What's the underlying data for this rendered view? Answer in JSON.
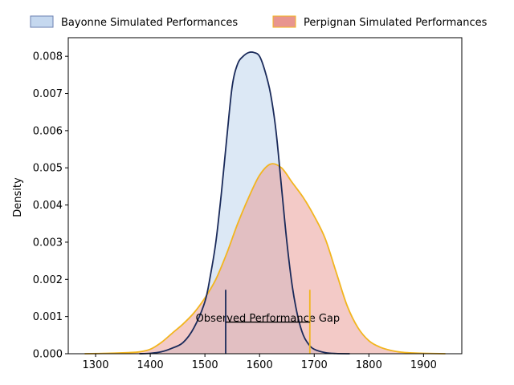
{
  "chart_data": {
    "type": "area",
    "title": "",
    "xlabel": "",
    "ylabel": "Density",
    "xlim": [
      1250,
      1970
    ],
    "ylim": [
      0,
      0.0085
    ],
    "xticks": [
      1300,
      1400,
      1500,
      1600,
      1700,
      1800,
      1900
    ],
    "yticks": [
      0.0,
      0.001,
      0.002,
      0.003,
      0.004,
      0.005,
      0.006,
      0.007,
      0.008
    ],
    "ytick_labels": [
      "0.000",
      "0.001",
      "0.002",
      "0.003",
      "0.004",
      "0.005",
      "0.006",
      "0.007",
      "0.008"
    ],
    "grid": false,
    "legend_placement": "top, outside plot, two columns",
    "series": [
      {
        "name": "Bayonne Simulated Performances",
        "fill_color": "#c5d8ef",
        "line_color": "#1a2a5a",
        "x": [
          1380,
          1400,
          1420,
          1440,
          1460,
          1480,
          1500,
          1510,
          1520,
          1530,
          1540,
          1550,
          1560,
          1570,
          1580,
          1590,
          1600,
          1610,
          1620,
          1630,
          1640,
          1650,
          1660,
          1670,
          1680,
          1690,
          1700,
          1720,
          1740,
          1765
        ],
        "y": [
          0.0,
          1e-05,
          5e-05,
          0.00015,
          0.0003,
          0.0007,
          0.0014,
          0.0021,
          0.003,
          0.0043,
          0.0058,
          0.0072,
          0.0078,
          0.008,
          0.0081,
          0.0081,
          0.008,
          0.0076,
          0.007,
          0.006,
          0.0045,
          0.003,
          0.0018,
          0.001,
          0.0005,
          0.00025,
          0.00012,
          3e-05,
          5e-06,
          0.0
        ]
      },
      {
        "name": "Perpignan Simulated Performances",
        "fill_color": "#e8958f",
        "line_color": "#f2b51f",
        "x": [
          1280,
          1320,
          1360,
          1380,
          1400,
          1420,
          1440,
          1460,
          1480,
          1500,
          1520,
          1540,
          1560,
          1580,
          1600,
          1620,
          1640,
          1660,
          1680,
          1700,
          1720,
          1740,
          1760,
          1780,
          1800,
          1820,
          1840,
          1860,
          1880,
          1900,
          1940
        ],
        "y": [
          0.0,
          1e-05,
          3e-05,
          5e-05,
          0.00012,
          0.0003,
          0.00055,
          0.0008,
          0.0011,
          0.0015,
          0.002,
          0.0027,
          0.0035,
          0.0042,
          0.0048,
          0.0051,
          0.005,
          0.0046,
          0.0042,
          0.0037,
          0.0031,
          0.0022,
          0.0013,
          0.0007,
          0.00035,
          0.00018,
          9e-05,
          4e-05,
          2e-05,
          1e-05,
          0.0
        ]
      }
    ],
    "annotation": {
      "text": "Observed Performance Gap",
      "bayonne_marker_x": 1538,
      "perpignan_marker_x": 1692,
      "marker_top_y": 0.00172,
      "bracket_y": 0.00085,
      "label_y": 0.00095
    }
  }
}
